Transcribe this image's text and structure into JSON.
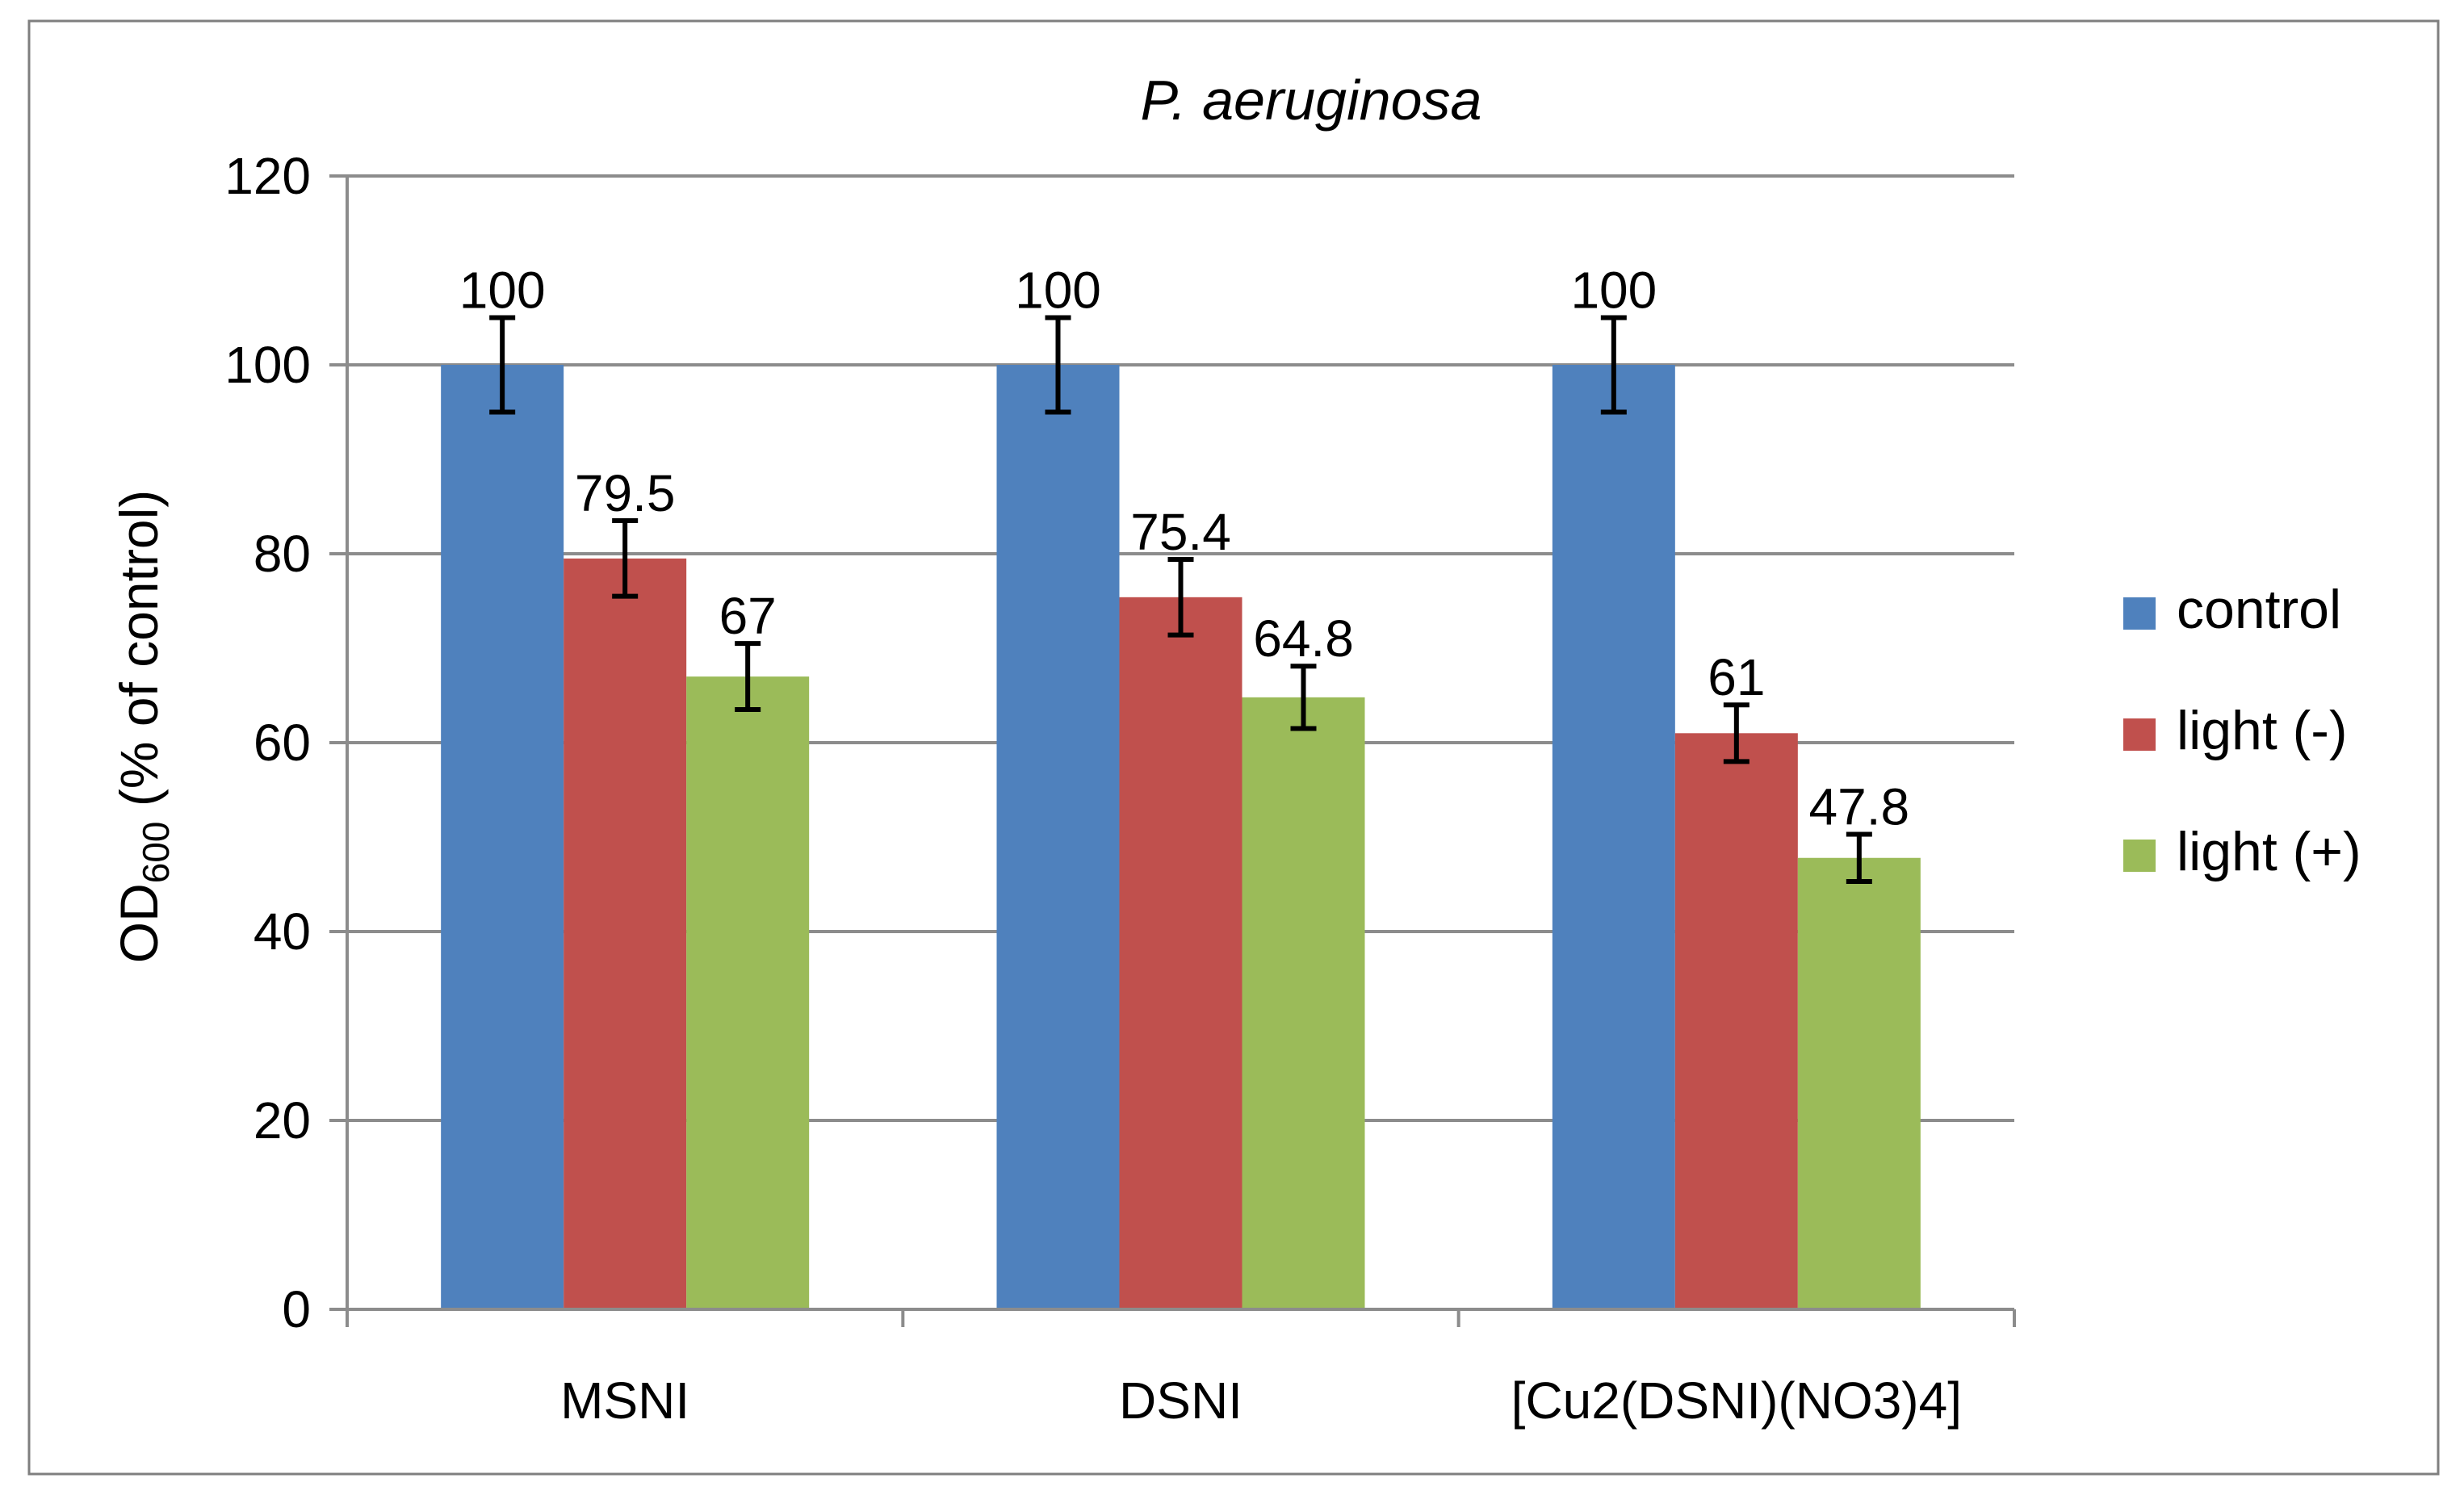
{
  "chart_data": {
    "type": "bar",
    "title": "P. aeruginosa",
    "ylabel_main": "OD",
    "ylabel_sub": "600",
    "ylabel_rest": " (% of control)",
    "xlabel": "",
    "ylim": [
      0,
      120
    ],
    "yticks": [
      0,
      20,
      40,
      60,
      80,
      100,
      120
    ],
    "categories": [
      "MSNI",
      "DSNI",
      "[Cu2(DSNI)(NO3)4]"
    ],
    "series": [
      {
        "name": "control",
        "color": "#4f81bd",
        "values": [
          100,
          100,
          100
        ],
        "errors": [
          5,
          5,
          5
        ],
        "labels": [
          "100",
          "100",
          "100"
        ]
      },
      {
        "name": "light (-)",
        "color": "#c0504d",
        "values": [
          79.5,
          75.4,
          61
        ],
        "errors": [
          4,
          4,
          3
        ],
        "labels": [
          "79.5",
          "75.4",
          "61"
        ]
      },
      {
        "name": "light (+)",
        "color": "#9bbb59",
        "values": [
          67,
          64.8,
          47.8
        ],
        "errors": [
          3.5,
          3.3,
          2.5
        ],
        "labels": [
          "67",
          "64.8",
          "47.8"
        ]
      }
    ],
    "legend_position": "right"
  }
}
